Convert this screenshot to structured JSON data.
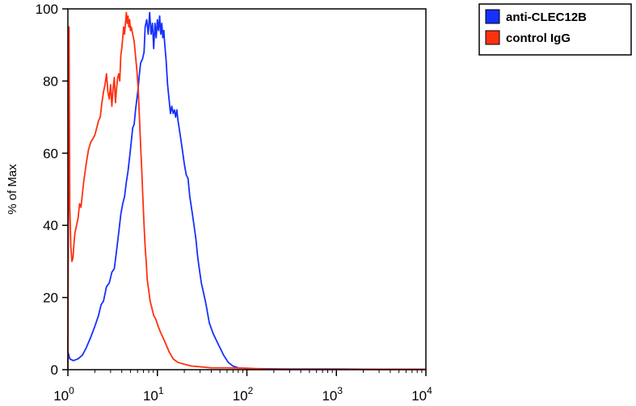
{
  "chart_data": {
    "type": "line",
    "title": "",
    "xlabel": "",
    "ylabel": "% of Max",
    "x_scale": "log",
    "xlim": [
      1,
      10000
    ],
    "ylim": [
      0,
      100
    ],
    "grid": false,
    "legend_position": "top-right",
    "x_ticks": [
      {
        "value": 1,
        "base": "10",
        "exp": "0"
      },
      {
        "value": 10,
        "base": "10",
        "exp": "1"
      },
      {
        "value": 100,
        "base": "10",
        "exp": "2"
      },
      {
        "value": 1000,
        "base": "10",
        "exp": "3"
      },
      {
        "value": 10000,
        "base": "10",
        "exp": "4"
      }
    ],
    "y_ticks": [
      {
        "value": 0,
        "label": "0"
      },
      {
        "value": 20,
        "label": "20"
      },
      {
        "value": 40,
        "label": "40"
      },
      {
        "value": 60,
        "label": "60"
      },
      {
        "value": 80,
        "label": "80"
      },
      {
        "value": 100,
        "label": "100"
      }
    ],
    "series": [
      {
        "name": "anti-CLEC12B",
        "color": "#1530ff",
        "x": [
          1.0,
          1.05,
          1.15,
          1.3,
          1.45,
          1.6,
          1.8,
          2.0,
          2.2,
          2.35,
          2.5,
          2.7,
          2.9,
          3.1,
          3.3,
          3.5,
          3.7,
          3.9,
          4.1,
          4.3,
          4.5,
          4.7,
          4.9,
          5.1,
          5.3,
          5.5,
          5.7,
          5.9,
          6.1,
          6.3,
          6.5,
          6.8,
          7.1,
          7.3,
          7.6,
          7.9,
          8.2,
          8.5,
          8.8,
          9.1,
          9.4,
          9.7,
          10.0,
          10.3,
          10.6,
          10.9,
          11.2,
          11.5,
          11.8,
          12.1,
          12.5,
          13.0,
          13.5,
          14.0,
          14.5,
          15.0,
          15.5,
          16.0,
          16.5,
          17.0,
          17.5,
          18.0,
          19.0,
          20.0,
          21.0,
          22.0,
          23.0,
          24.0,
          25.0,
          26.0,
          27.0,
          28.0,
          29.0,
          31.0,
          33.0,
          35.0,
          38.0,
          42.0,
          48.0,
          55.0,
          62.0,
          70.0,
          80.0,
          100.0,
          300.0,
          1000.0,
          3000.0,
          10000.0
        ],
        "values": [
          5,
          3,
          2.5,
          3,
          4,
          6,
          9,
          12,
          15,
          18,
          19,
          23,
          24,
          27,
          28,
          33,
          38,
          43,
          46,
          48,
          52,
          55,
          59,
          63,
          67,
          68,
          72,
          75,
          78,
          82,
          85,
          86,
          88,
          95,
          97,
          93,
          99,
          93,
          96,
          89,
          96,
          92,
          97,
          94,
          98,
          93,
          96,
          92,
          94,
          90,
          86,
          79,
          75,
          71,
          73,
          71,
          72,
          70,
          72,
          69,
          67,
          65,
          61,
          57,
          54,
          53,
          48,
          45,
          42,
          39,
          36,
          32,
          29,
          24,
          21,
          18,
          13,
          10,
          7,
          4,
          2,
          1,
          0.5,
          0.3,
          0.2,
          0.2,
          0.1,
          0.1
        ]
      },
      {
        "name": "control IgG",
        "color": "#ff3010",
        "x": [
          1.0,
          1.03,
          1.05,
          1.08,
          1.11,
          1.14,
          1.17,
          1.2,
          1.25,
          1.3,
          1.35,
          1.4,
          1.5,
          1.6,
          1.7,
          1.8,
          1.9,
          2.0,
          2.1,
          2.2,
          2.3,
          2.4,
          2.5,
          2.6,
          2.7,
          2.8,
          2.9,
          3.0,
          3.1,
          3.2,
          3.3,
          3.4,
          3.5,
          3.6,
          3.7,
          3.8,
          3.9,
          4.0,
          4.1,
          4.2,
          4.3,
          4.4,
          4.5,
          4.6,
          4.7,
          4.8,
          4.9,
          5.0,
          5.1,
          5.3,
          5.5,
          5.7,
          5.9,
          6.1,
          6.3,
          6.5,
          6.7,
          6.9,
          7.1,
          7.3,
          7.5,
          7.7,
          8.0,
          8.3,
          8.7,
          9.1,
          9.6,
          10.2,
          11.0,
          12.0,
          13.5,
          15.0,
          17.0,
          20.0,
          24.0,
          30.0,
          40.0,
          60.0,
          100.0,
          150.0,
          300.0,
          500.0,
          600.0,
          1000.0,
          3000.0,
          10000.0
        ],
        "values": [
          0,
          95,
          45,
          34,
          30,
          31,
          35,
          38,
          40,
          42,
          46,
          45,
          52,
          57,
          61,
          63,
          64,
          65,
          67,
          69,
          70,
          74,
          77,
          79,
          82,
          77,
          75,
          79,
          73,
          78,
          81,
          74,
          78,
          81,
          82,
          80,
          87,
          89,
          92,
          95,
          93,
          96,
          99,
          96,
          98,
          95,
          97,
          94,
          95,
          93,
          91,
          87,
          83,
          78,
          70,
          62,
          55,
          47,
          40,
          34,
          30,
          25,
          22,
          19,
          17,
          15,
          14,
          12,
          10,
          8,
          5,
          3,
          2,
          1.5,
          1,
          0.8,
          0.5,
          0.5,
          0.4,
          0.2,
          0.1,
          0.1,
          0.1,
          0.1,
          0.1,
          0.1
        ]
      }
    ]
  }
}
